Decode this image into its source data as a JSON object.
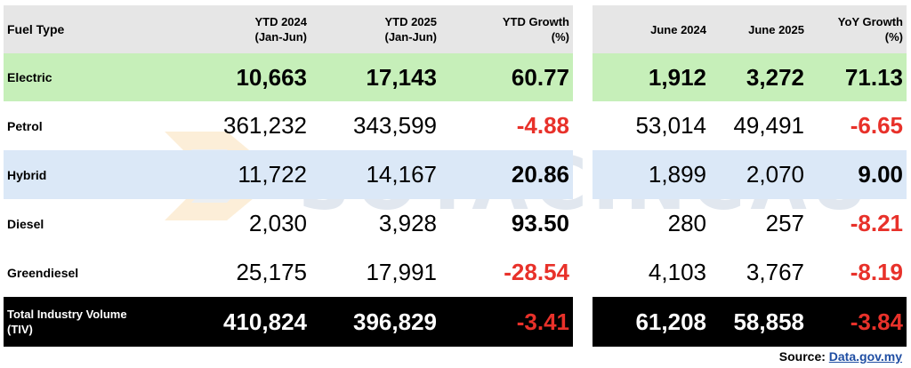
{
  "header": {
    "fuel_type": "Fuel Type",
    "ytd_2024_line1": "YTD 2024",
    "ytd_2024_line2": "(Jan-Jun)",
    "ytd_2025_line1": "YTD 2025",
    "ytd_2025_line2": "(Jan-Jun)",
    "ytd_growth_line1": "YTD Growth",
    "ytd_growth_line2": "(%)",
    "june_2024": "June 2024",
    "june_2025": "June 2025",
    "yoy_growth_line1": "YoY Growth",
    "yoy_growth_line2": "(%)"
  },
  "rows": [
    {
      "fuel": "Electric",
      "ytd_2024": "10,663",
      "ytd_2025": "17,143",
      "ytd_growth": "60.77",
      "june_2024": "1,912",
      "june_2025": "3,272",
      "yoy_growth": "71.13"
    },
    {
      "fuel": "Petrol",
      "ytd_2024": "361,232",
      "ytd_2025": "343,599",
      "ytd_growth": "-4.88",
      "june_2024": "53,014",
      "june_2025": "49,491",
      "yoy_growth": "-6.65"
    },
    {
      "fuel": "Hybrid",
      "ytd_2024": "11,722",
      "ytd_2025": "14,167",
      "ytd_growth": "20.86",
      "june_2024": "1,899",
      "june_2025": "2,070",
      "yoy_growth": "9.00"
    },
    {
      "fuel": "Diesel",
      "ytd_2024": "2,030",
      "ytd_2025": "3,928",
      "ytd_growth": "93.50",
      "june_2024": "280",
      "june_2025": "257",
      "yoy_growth": "-8.21"
    },
    {
      "fuel": "Greendiesel",
      "ytd_2024": "25,175",
      "ytd_2025": "17,991",
      "ytd_growth": "-28.54",
      "june_2024": "4,103",
      "june_2025": "3,767",
      "yoy_growth": "-8.19"
    }
  ],
  "total": {
    "label_line1": "Total Industry Volume",
    "label_line2": "(TIV)",
    "ytd_2024": "410,824",
    "ytd_2025": "396,829",
    "ytd_growth": "-3.41",
    "june_2024": "61,208",
    "june_2025": "58,858",
    "yoy_growth": "-3.84"
  },
  "watermark": "SOYACINCAU",
  "source": {
    "label": "Source:",
    "link": "Data.gov.my"
  },
  "colors": {
    "electric_row": "#c6efb9",
    "hybrid_row": "#dbe8f7",
    "header_bg": "#e6e6e6",
    "negative": "#e8312a",
    "total_row": "#000000"
  }
}
